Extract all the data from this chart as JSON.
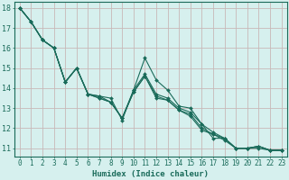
{
  "xlabel": "Humidex (Indice chaleur)",
  "background_color": "#d6f0ee",
  "grid_color": "#c8b8b8",
  "line_color": "#1a6b5a",
  "xlim": [
    -0.5,
    23.5
  ],
  "ylim": [
    10.6,
    18.3
  ],
  "xticks": [
    0,
    1,
    2,
    3,
    4,
    5,
    6,
    7,
    8,
    9,
    10,
    11,
    12,
    13,
    14,
    15,
    16,
    17,
    18,
    19,
    20,
    21,
    22,
    23
  ],
  "yticks": [
    11,
    12,
    13,
    14,
    15,
    16,
    17,
    18
  ],
  "series": [
    [
      18.0,
      17.3,
      16.4,
      16.0,
      14.3,
      15.0,
      13.7,
      13.6,
      13.3,
      12.5,
      13.9,
      15.5,
      14.4,
      13.9,
      13.1,
      13.0,
      12.2,
      11.5,
      11.5,
      11.0,
      11.0,
      11.1,
      10.9,
      10.9
    ],
    [
      18.0,
      17.3,
      16.4,
      16.0,
      14.3,
      15.0,
      13.7,
      13.6,
      13.5,
      12.4,
      13.9,
      14.7,
      13.7,
      13.5,
      13.0,
      12.8,
      12.2,
      11.8,
      11.5,
      11.0,
      11.0,
      11.1,
      10.9,
      10.9
    ],
    [
      18.0,
      17.3,
      16.4,
      16.0,
      14.3,
      15.0,
      13.7,
      13.5,
      13.3,
      12.5,
      13.8,
      14.6,
      13.6,
      13.4,
      12.9,
      12.7,
      12.0,
      11.7,
      11.5,
      11.0,
      11.0,
      11.1,
      10.9,
      10.9
    ],
    [
      18.0,
      17.3,
      16.4,
      16.0,
      14.3,
      15.0,
      13.7,
      13.5,
      13.3,
      12.5,
      13.8,
      14.6,
      13.5,
      13.4,
      12.9,
      12.6,
      11.9,
      11.7,
      11.4,
      11.0,
      11.0,
      11.0,
      10.9,
      10.9
    ]
  ],
  "xlabel_fontsize": 6.5,
  "tick_fontsize": 5.5,
  "ytick_fontsize": 6.0
}
